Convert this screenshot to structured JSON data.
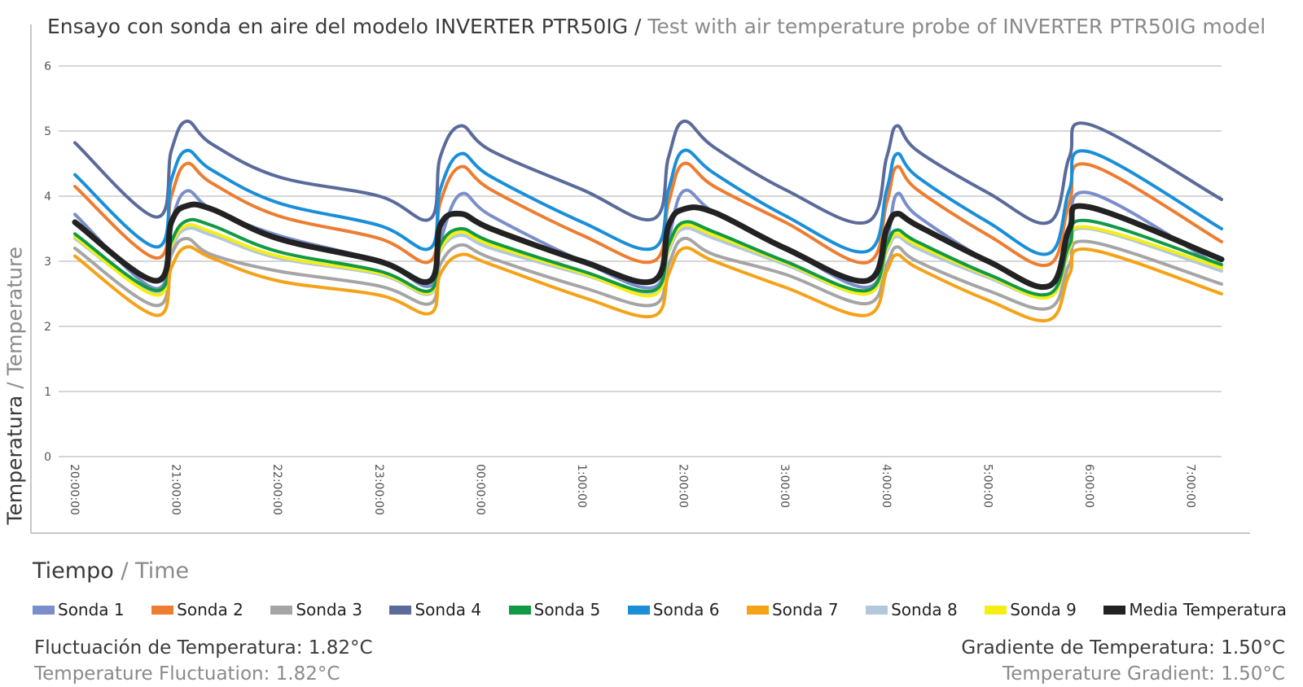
{
  "title": {
    "es": "Ensayo con sonda en aire del modelo INVERTER PTR50IG",
    "separator": "/",
    "en": "Test with air temperature probe of INVERTER PTR50IG model"
  },
  "axis": {
    "ylabel_es": "Temperatura",
    "ylabel_sep": "/",
    "ylabel_en": "Temperature",
    "xlabel_es": "Tiempo",
    "xlabel_sep": "/",
    "xlabel_en": "Time"
  },
  "stats": {
    "fluct_es": "Fluctuación de Temperatura: 1.82°C",
    "fluct_en": "Temperature Fluctuation: 1.82°C",
    "grad_es": "Gradiente de Temperatura: 1.50°C",
    "grad_en": "Temperature Gradient: 1.50°C"
  },
  "chart_data": {
    "type": "line",
    "title": "Ensayo con sonda en aire del modelo INVERTER PTR50IG / Test with air temperature probe of INVERTER PTR50IG model",
    "xlabel": "Tiempo / Time",
    "ylabel": "Temperatura / Temperature",
    "ylim": [
      0,
      6
    ],
    "yticks": [
      0,
      1,
      2,
      3,
      4,
      5,
      6
    ],
    "xlim": [
      0,
      11.3
    ],
    "x_unit": "hours after 20:00:00",
    "xticks": [
      0,
      1,
      2,
      3,
      4,
      5,
      6,
      7,
      8,
      9,
      10,
      11
    ],
    "x_tick_labels": [
      "20:00:00",
      "21:00:00",
      "22:00:00",
      "23:00:00",
      "00:00:00",
      "1:00:00",
      "2:00:00",
      "3:00:00",
      "4:00:00",
      "5:00:00",
      "6:00:00",
      "7:00:00"
    ],
    "grid": true,
    "legend_position": "bottom",
    "series": [
      {
        "name": "Sonda 1",
        "color": "#7a8fc9",
        "x": [
          0,
          0.8,
          0.95,
          1.1,
          1.35,
          2,
          3,
          3.5,
          3.6,
          3.8,
          4.1,
          5,
          5.7,
          5.85,
          6,
          6.3,
          7,
          7.8,
          8,
          8.1,
          8.3,
          9,
          9.6,
          9.8,
          10,
          11.3
        ],
        "y": [
          3.72,
          2.58,
          3.6,
          4.08,
          3.8,
          3.4,
          3.0,
          2.62,
          3.3,
          4.03,
          3.7,
          3.0,
          2.6,
          3.35,
          4.08,
          3.75,
          3.2,
          2.6,
          3.3,
          4.03,
          3.7,
          3.0,
          2.62,
          3.4,
          4.05,
          2.9
        ]
      },
      {
        "name": "Sonda 2",
        "color": "#ed7d31",
        "x": [
          0,
          0.8,
          0.95,
          1.1,
          1.35,
          2,
          3,
          3.5,
          3.6,
          3.8,
          4.1,
          5,
          5.7,
          5.85,
          6,
          6.3,
          7,
          7.8,
          8,
          8.1,
          8.3,
          9,
          9.6,
          9.8,
          10,
          11.3
        ],
        "y": [
          4.15,
          3.05,
          4.0,
          4.5,
          4.2,
          3.7,
          3.35,
          3.0,
          3.9,
          4.45,
          4.1,
          3.4,
          3.0,
          3.9,
          4.5,
          4.15,
          3.6,
          2.98,
          3.9,
          4.45,
          4.1,
          3.4,
          2.95,
          3.9,
          4.48,
          3.3
        ]
      },
      {
        "name": "Sonda 3",
        "color": "#a5a5a5",
        "x": [
          0,
          0.8,
          0.95,
          1.1,
          1.35,
          2,
          3,
          3.5,
          3.6,
          3.8,
          4.1,
          5,
          5.7,
          5.85,
          6,
          6.3,
          7,
          7.8,
          8,
          8.1,
          8.3,
          9,
          9.6,
          9.8,
          10,
          11.3
        ],
        "y": [
          3.2,
          2.32,
          3.1,
          3.35,
          3.1,
          2.85,
          2.62,
          2.35,
          2.95,
          3.25,
          3.05,
          2.6,
          2.33,
          2.95,
          3.35,
          3.1,
          2.8,
          2.35,
          2.95,
          3.22,
          3.0,
          2.55,
          2.28,
          2.95,
          3.3,
          2.65
        ]
      },
      {
        "name": "Sonda 4",
        "color": "#5a6a9a",
        "x": [
          0,
          0.8,
          0.95,
          1.1,
          1.35,
          2,
          3,
          3.5,
          3.6,
          3.8,
          4.1,
          5,
          5.7,
          5.85,
          6,
          6.3,
          7,
          7.8,
          8,
          8.1,
          8.3,
          9,
          9.6,
          9.8,
          10,
          11.3
        ],
        "y": [
          4.82,
          3.68,
          4.7,
          5.15,
          4.8,
          4.3,
          4.0,
          3.65,
          4.6,
          5.08,
          4.7,
          4.1,
          3.65,
          4.6,
          5.15,
          4.75,
          4.1,
          3.6,
          4.6,
          5.08,
          4.7,
          4.05,
          3.6,
          4.6,
          5.1,
          3.95
        ]
      },
      {
        "name": "Sonda 5",
        "color": "#109a46",
        "x": [
          0,
          0.8,
          0.95,
          1.1,
          1.35,
          2,
          3,
          3.5,
          3.6,
          3.8,
          4.1,
          5,
          5.7,
          5.85,
          6,
          6.3,
          7,
          7.8,
          8,
          8.1,
          8.3,
          9,
          9.6,
          9.8,
          10,
          11.3
        ],
        "y": [
          3.42,
          2.55,
          3.3,
          3.62,
          3.55,
          3.15,
          2.85,
          2.55,
          3.25,
          3.5,
          3.3,
          2.85,
          2.55,
          3.25,
          3.6,
          3.45,
          3.0,
          2.55,
          3.25,
          3.48,
          3.3,
          2.8,
          2.5,
          3.25,
          3.62,
          2.95
        ]
      },
      {
        "name": "Sonda 6",
        "color": "#1a8fd8",
        "x": [
          0,
          0.8,
          0.95,
          1.1,
          1.35,
          2,
          3,
          3.5,
          3.6,
          3.8,
          4.1,
          5,
          5.7,
          5.85,
          6,
          6.3,
          7,
          7.8,
          8,
          8.1,
          8.3,
          9,
          9.6,
          9.8,
          10,
          11.3
        ],
        "y": [
          4.33,
          3.22,
          4.25,
          4.7,
          4.4,
          3.9,
          3.55,
          3.2,
          4.1,
          4.65,
          4.3,
          3.6,
          3.2,
          4.1,
          4.7,
          4.35,
          3.7,
          3.15,
          4.1,
          4.65,
          4.3,
          3.6,
          3.12,
          4.1,
          4.68,
          3.5
        ]
      },
      {
        "name": "Sonda 7",
        "color": "#f4a318",
        "x": [
          0,
          0.8,
          0.95,
          1.1,
          1.35,
          2,
          3,
          3.5,
          3.6,
          3.8,
          4.1,
          5,
          5.7,
          5.85,
          6,
          6.3,
          7,
          7.8,
          8,
          8.1,
          8.3,
          9,
          9.6,
          9.8,
          10,
          11.3
        ],
        "y": [
          3.08,
          2.17,
          2.9,
          3.22,
          3.05,
          2.7,
          2.48,
          2.2,
          2.8,
          3.1,
          2.95,
          2.45,
          2.16,
          2.8,
          3.2,
          3.0,
          2.6,
          2.17,
          2.85,
          3.1,
          2.9,
          2.4,
          2.1,
          2.8,
          3.18,
          2.5
        ]
      },
      {
        "name": "Sonda 8",
        "color": "#b3c8da",
        "x": [
          0,
          0.8,
          0.95,
          1.1,
          1.35,
          2,
          3,
          3.5,
          3.6,
          3.8,
          4.1,
          5,
          5.7,
          5.85,
          6,
          6.3,
          7,
          7.8,
          8,
          8.1,
          8.3,
          9,
          9.6,
          9.8,
          10,
          11.3
        ],
        "y": [
          3.35,
          2.5,
          3.2,
          3.5,
          3.4,
          3.05,
          2.8,
          2.5,
          3.15,
          3.4,
          3.2,
          2.8,
          2.5,
          3.15,
          3.5,
          3.35,
          2.95,
          2.5,
          3.15,
          3.38,
          3.2,
          2.75,
          2.45,
          3.15,
          3.5,
          2.85
        ]
      },
      {
        "name": "Sonda 9",
        "color": "#f5ee16",
        "x": [
          0,
          0.8,
          0.95,
          1.1,
          1.35,
          2,
          3,
          3.5,
          3.6,
          3.8,
          4.1,
          5,
          5.7,
          5.85,
          6,
          6.3,
          7,
          7.8,
          8,
          8.1,
          8.3,
          9,
          9.6,
          9.8,
          10,
          11.3
        ],
        "y": [
          3.38,
          2.48,
          3.25,
          3.55,
          3.45,
          3.08,
          2.82,
          2.52,
          3.18,
          3.45,
          3.25,
          2.82,
          2.48,
          3.2,
          3.55,
          3.4,
          2.98,
          2.5,
          3.2,
          3.42,
          3.25,
          2.78,
          2.45,
          3.2,
          3.52,
          2.9
        ]
      },
      {
        "name": "Media Temperatura",
        "color": "#222222",
        "x": [
          0,
          0.8,
          0.95,
          1.1,
          1.35,
          2,
          3,
          3.5,
          3.6,
          3.8,
          4.1,
          5,
          5.7,
          5.85,
          6,
          6.3,
          7,
          7.8,
          8,
          8.1,
          8.3,
          9,
          9.6,
          9.8,
          10,
          11.3
        ],
        "y": [
          3.6,
          2.7,
          3.6,
          3.85,
          3.8,
          3.35,
          3.0,
          2.7,
          3.55,
          3.73,
          3.5,
          3.0,
          2.7,
          3.55,
          3.8,
          3.75,
          3.2,
          2.7,
          3.5,
          3.73,
          3.55,
          3.0,
          2.62,
          3.5,
          3.83,
          3.03
        ]
      }
    ]
  }
}
